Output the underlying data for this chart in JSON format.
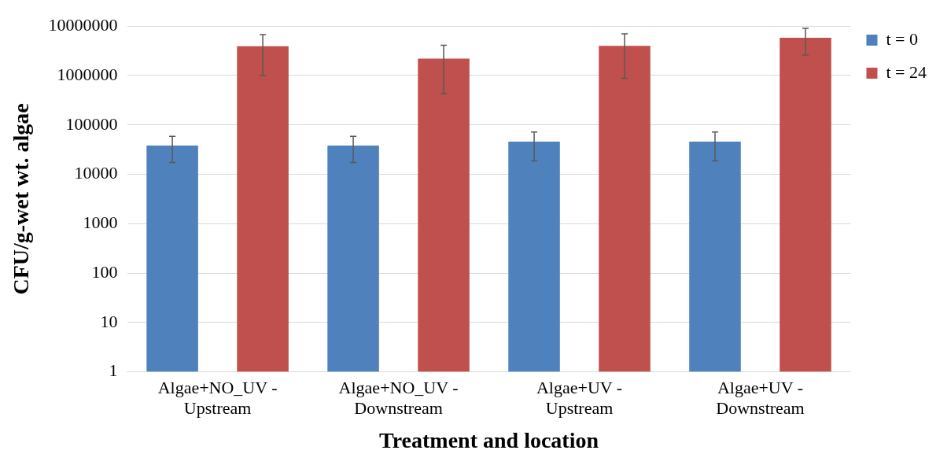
{
  "chart_data": {
    "type": "bar",
    "xlabel": "Treatment and location",
    "ylabel": "CFU/g-wet wt. algae",
    "categories": [
      "Algae+NO_UV - Upstream",
      "Algae+NO_UV - Downstream",
      "Algae+UV - Upstream",
      "Algae+UV - Downstream"
    ],
    "series": [
      {
        "name": "t = 0",
        "color": "#4f81bd",
        "values": [
          38000,
          38000,
          46000,
          46000
        ],
        "errors": [
          [
            17400,
            59000
          ],
          [
            17400,
            59000
          ],
          [
            18700,
            72000
          ],
          [
            18700,
            72000
          ]
        ]
      },
      {
        "name": "t = 24",
        "color": "#c0504d",
        "values": [
          3900000,
          2200000,
          4000000,
          5800000
        ],
        "errors": [
          [
            1000000,
            6700000
          ],
          [
            430000,
            4100000
          ],
          [
            880000,
            7000000
          ],
          [
            2600000,
            9000000
          ]
        ]
      }
    ],
    "log": "y",
    "ylim": [
      1,
      10000000
    ],
    "yticks": [
      1,
      10,
      100,
      1000,
      10000,
      100000,
      1000000,
      10000000
    ],
    "grid": "y",
    "legend": "top right"
  }
}
